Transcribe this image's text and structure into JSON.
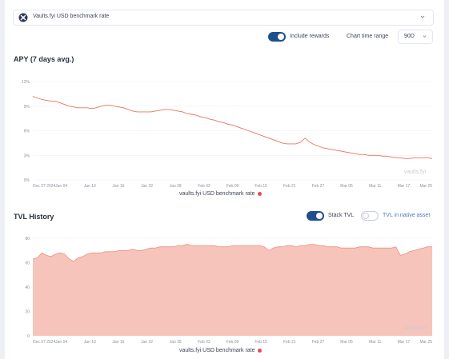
{
  "header": {
    "selector_label": "Vaults.fyi USD benchmark rate",
    "include_rewards_label": "Include rewards",
    "include_rewards_on": true,
    "chart_time_range_label": "Chart time range",
    "time_range_value": "90D"
  },
  "apy": {
    "title": "APY (7 days avg.)",
    "legend_label": "vaults.fyi USD benchmark rate",
    "watermark": "vaults.fyi"
  },
  "tvl": {
    "title": "TVL History",
    "stack_tvl_label": "Stack TVL",
    "stack_tvl_on": true,
    "native_asset_label": "TVL in native asset",
    "native_asset_on": false,
    "legend_label": "vaults.fyi USD benchmark rate",
    "watermark": "vaults.fyi"
  },
  "colors": {
    "series": "#e8735e",
    "area_fill": "#f6c4ba",
    "legend_dot": "#e54e4e",
    "toggle_on": "#1f4f8f"
  },
  "chart_data": [
    {
      "type": "line",
      "title": "APY (7 days avg.)",
      "x_tick_labels": [
        "Dec 27 2024",
        "Jan 04",
        "Jan 10",
        "Jan 16",
        "Jan 22",
        "Jan 28",
        "Feb 03",
        "Feb 09",
        "Feb 15",
        "Feb 21",
        "Feb 27",
        "Mar 05",
        "Mar 11",
        "Mar 17",
        "Mar 25"
      ],
      "y_tick_labels": [
        "0%",
        "3%",
        "6%",
        "9%",
        "12%"
      ],
      "ylim": [
        0,
        12
      ],
      "y_unit": "%",
      "grid": true,
      "legend_position": "bottom",
      "series": [
        {
          "name": "vaults.fyi USD benchmark rate",
          "x": [
            0,
            1,
            2,
            3,
            4,
            5,
            6,
            7,
            8,
            9,
            10,
            11,
            12,
            13,
            14,
            15,
            16,
            17,
            18,
            19,
            20,
            21,
            22,
            23,
            24,
            25,
            26,
            27,
            28,
            29,
            30,
            31,
            32,
            33,
            34,
            35,
            36,
            37,
            38,
            39,
            40,
            41,
            42,
            43,
            44,
            45,
            46,
            47,
            48,
            49,
            50,
            51,
            52,
            53,
            54,
            55,
            56,
            57,
            58,
            59,
            60,
            61,
            62,
            63,
            64,
            65,
            66,
            67,
            68,
            69,
            70,
            71,
            72,
            73,
            74,
            75,
            76,
            77,
            78,
            79,
            80,
            81,
            82,
            83,
            84,
            85,
            86,
            87,
            88
          ],
          "values": [
            10.2,
            10.0,
            9.8,
            9.7,
            9.6,
            9.6,
            9.4,
            9.2,
            9.0,
            8.9,
            8.8,
            8.8,
            8.8,
            8.7,
            8.8,
            9.0,
            9.1,
            9.1,
            9.0,
            8.9,
            8.8,
            8.6,
            8.4,
            8.3,
            8.3,
            8.3,
            8.3,
            8.4,
            8.5,
            8.6,
            8.6,
            8.5,
            8.4,
            8.3,
            8.1,
            8.0,
            7.9,
            7.7,
            7.6,
            7.4,
            7.3,
            7.1,
            7.0,
            6.8,
            6.7,
            6.5,
            6.3,
            6.1,
            5.9,
            5.7,
            5.5,
            5.3,
            5.1,
            4.9,
            4.7,
            4.5,
            4.4,
            4.4,
            4.4,
            4.6,
            5.1,
            4.6,
            4.3,
            4.1,
            3.9,
            3.8,
            3.7,
            3.6,
            3.5,
            3.4,
            3.3,
            3.2,
            3.1,
            3.1,
            3.0,
            3.0,
            3.0,
            2.9,
            2.9,
            2.8,
            2.7,
            2.7,
            2.6,
            2.6,
            2.7,
            2.7,
            2.7,
            2.7,
            2.6
          ]
        }
      ]
    },
    {
      "type": "area",
      "title": "TVL History",
      "x_tick_labels": [
        "Dec 27 2024",
        "Jan 04",
        "Jan 10",
        "Jan 16",
        "Jan 22",
        "Jan 28",
        "Feb 03",
        "Feb 09",
        "Feb 15",
        "Feb 21",
        "Feb 27",
        "Mar 05",
        "Mar 11",
        "Mar 17",
        "Mar 25"
      ],
      "y_tick_labels": [
        "0",
        "20",
        "40",
        "60",
        "80"
      ],
      "ylim": [
        0,
        80
      ],
      "grid": true,
      "stacked": true,
      "legend_position": "bottom",
      "series": [
        {
          "name": "vaults.fyi USD benchmark rate",
          "x": [
            0,
            1,
            2,
            3,
            4,
            5,
            6,
            7,
            8,
            9,
            10,
            11,
            12,
            13,
            14,
            15,
            16,
            17,
            18,
            19,
            20,
            21,
            22,
            23,
            24,
            25,
            26,
            27,
            28,
            29,
            30,
            31,
            32,
            33,
            34,
            35,
            36,
            37,
            38,
            39,
            40,
            41,
            42,
            43,
            44,
            45,
            46,
            47,
            48,
            49,
            50,
            51,
            52,
            53,
            54,
            55,
            56,
            57,
            58,
            59,
            60,
            61,
            62,
            63,
            64,
            65,
            66,
            67,
            68,
            69,
            70,
            71,
            72,
            73,
            74,
            75,
            76,
            77,
            78,
            79,
            80,
            81,
            82,
            83,
            84,
            85,
            86,
            87,
            88
          ],
          "values": [
            63,
            64,
            68,
            66,
            65,
            67,
            68,
            67,
            63,
            61,
            64,
            65,
            67,
            68,
            68,
            68,
            69,
            69,
            69,
            70,
            70,
            70,
            71,
            70,
            70,
            71,
            72,
            72,
            73,
            73,
            73,
            73,
            74,
            74,
            75,
            74,
            74,
            74,
            74,
            74,
            74,
            73,
            73,
            73,
            74,
            74,
            74,
            74,
            74,
            74,
            74,
            73,
            70,
            72,
            73,
            73,
            74,
            74,
            73,
            74,
            74,
            75,
            75,
            74,
            74,
            73,
            73,
            73,
            72,
            72,
            72,
            72,
            73,
            73,
            73,
            72,
            72,
            72,
            72,
            72,
            73,
            66,
            67,
            69,
            70,
            71,
            72,
            73,
            73
          ]
        }
      ]
    }
  ]
}
